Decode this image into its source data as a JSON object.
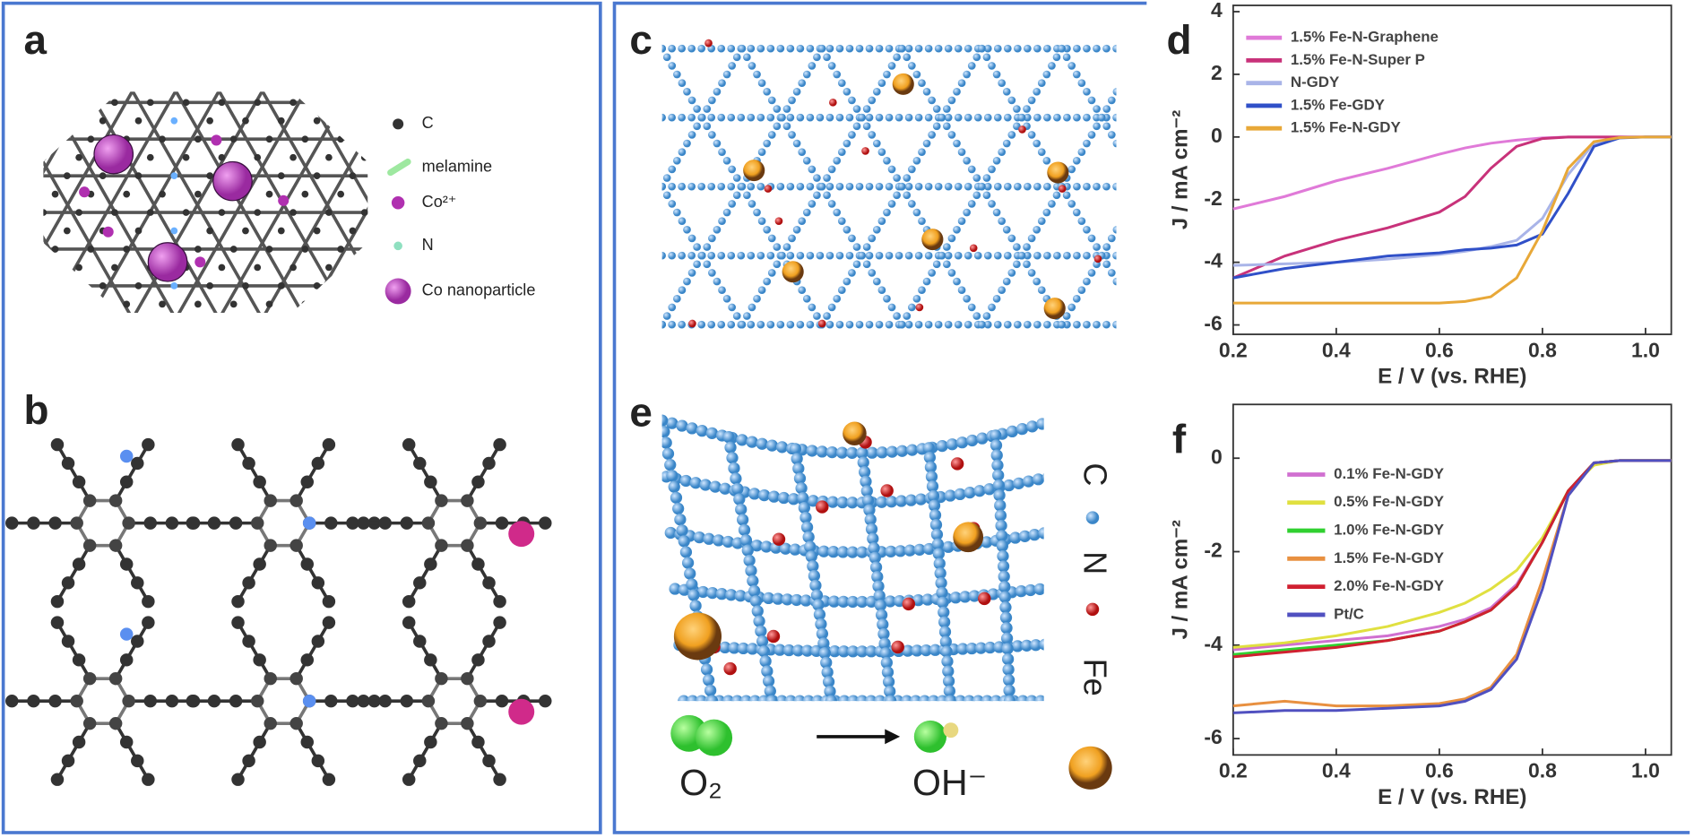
{
  "panels": {
    "a": {
      "label": "a",
      "legend": [
        "C",
        "melamine",
        "Co²⁺",
        "N",
        "Co nanoparticle"
      ]
    },
    "b": {
      "label": "b"
    },
    "c": {
      "label": "c"
    },
    "e": {
      "label": "e",
      "legend": [
        "C",
        "N",
        "Fe"
      ],
      "reactant": "O₂",
      "product": "OH⁻"
    }
  },
  "chart_data": [
    {
      "type": "line",
      "label": "d",
      "xlabel": "E / V (vs. RHE)",
      "ylabel": "J / mA cm⁻²",
      "x": [
        0.2,
        0.3,
        0.4,
        0.5,
        0.6,
        0.65,
        0.7,
        0.75,
        0.8,
        0.85,
        0.9,
        0.95,
        1.0,
        1.05
      ],
      "xlim": [
        0.2,
        1.05
      ],
      "xticks": [
        0.2,
        0.4,
        0.6,
        0.8,
        {
          "value": 1.0,
          "label": "1.0"
        }
      ],
      "ylim": [
        -6.3,
        4.2
      ],
      "yticks": [
        -6,
        -4,
        -2,
        0,
        2,
        4
      ],
      "series": [
        {
          "name": "1.5% Fe-N-Graphene",
          "color": "#e07ad8",
          "values": [
            -2.3,
            -1.9,
            -1.4,
            -1.0,
            -0.55,
            -0.35,
            -0.2,
            -0.1,
            -0.03,
            0,
            0,
            0,
            0,
            0
          ]
        },
        {
          "name": "1.5% Fe-N-Super P",
          "color": "#c8327a",
          "values": [
            -4.5,
            -3.8,
            -3.3,
            -2.9,
            -2.4,
            -1.9,
            -1.0,
            -0.3,
            -0.05,
            0,
            0,
            0,
            0,
            0
          ]
        },
        {
          "name": "N-GDY",
          "color": "#a9b4e8",
          "values": [
            -4.1,
            -4.05,
            -4.0,
            -3.9,
            -3.75,
            -3.65,
            -3.5,
            -3.3,
            -2.6,
            -1.2,
            -0.2,
            -0.02,
            0,
            0
          ]
        },
        {
          "name": "1.5% Fe-GDY",
          "color": "#3050c8",
          "values": [
            -4.5,
            -4.2,
            -4.0,
            -3.8,
            -3.7,
            -3.6,
            -3.55,
            -3.45,
            -3.1,
            -1.8,
            -0.3,
            -0.03,
            0,
            0
          ]
        },
        {
          "name": "1.5% Fe-N-GDY",
          "color": "#e8a838",
          "values": [
            -5.3,
            -5.3,
            -5.3,
            -5.3,
            -5.3,
            -5.25,
            -5.1,
            -4.5,
            -3.0,
            -1.0,
            -0.15,
            -0.02,
            0,
            0
          ]
        }
      ]
    },
    {
      "type": "line",
      "label": "f",
      "xlabel": "E / V (vs. RHE)",
      "ylabel": "J / mA cm⁻²",
      "x": [
        0.2,
        0.3,
        0.4,
        0.5,
        0.6,
        0.65,
        0.7,
        0.75,
        0.8,
        0.85,
        0.9,
        0.95,
        1.0,
        1.05
      ],
      "xlim": [
        0.2,
        1.05
      ],
      "xticks": [
        0.2,
        0.4,
        0.6,
        0.8,
        {
          "value": 1.0,
          "label": "1.0"
        }
      ],
      "ylim": [
        -6.35,
        1.15
      ],
      "yticks": [
        -6,
        -4,
        -2,
        0
      ],
      "series": [
        {
          "name": "0.1% Fe-N-GDY",
          "color": "#d070d0",
          "values": [
            -4.1,
            -4.0,
            -3.9,
            -3.8,
            -3.6,
            -3.45,
            -3.2,
            -2.7,
            -1.8,
            -0.7,
            -0.1,
            -0.05,
            -0.05,
            -0.05
          ]
        },
        {
          "name": "0.5% Fe-N-GDY",
          "color": "#e0e040",
          "values": [
            -4.05,
            -3.95,
            -3.8,
            -3.6,
            -3.3,
            -3.1,
            -2.8,
            -2.4,
            -1.7,
            -0.7,
            -0.15,
            -0.05,
            -0.05,
            -0.05
          ]
        },
        {
          "name": "1.0% Fe-N-GDY",
          "color": "#30d030",
          "values": [
            -4.2,
            -4.1,
            -4.0,
            -3.9,
            -3.7,
            -3.5,
            -3.25,
            -2.75,
            -1.8,
            -0.7,
            -0.1,
            -0.05,
            -0.05,
            -0.05
          ]
        },
        {
          "name": "1.5% Fe-N-GDY",
          "color": "#e89040",
          "values": [
            -5.3,
            -5.2,
            -5.3,
            -5.3,
            -5.25,
            -5.15,
            -4.9,
            -4.2,
            -2.6,
            -0.8,
            -0.1,
            -0.05,
            -0.05,
            -0.05
          ]
        },
        {
          "name": "2.0% Fe-N-GDY",
          "color": "#d02030",
          "values": [
            -4.25,
            -4.15,
            -4.05,
            -3.9,
            -3.7,
            -3.5,
            -3.25,
            -2.75,
            -1.8,
            -0.7,
            -0.1,
            -0.05,
            -0.05,
            -0.05
          ]
        },
        {
          "name": "Pt/C",
          "color": "#5050c0",
          "values": [
            -5.45,
            -5.4,
            -5.4,
            -5.35,
            -5.3,
            -5.2,
            -4.95,
            -4.3,
            -2.8,
            -0.8,
            -0.1,
            -0.05,
            -0.05,
            -0.05
          ]
        }
      ]
    }
  ]
}
